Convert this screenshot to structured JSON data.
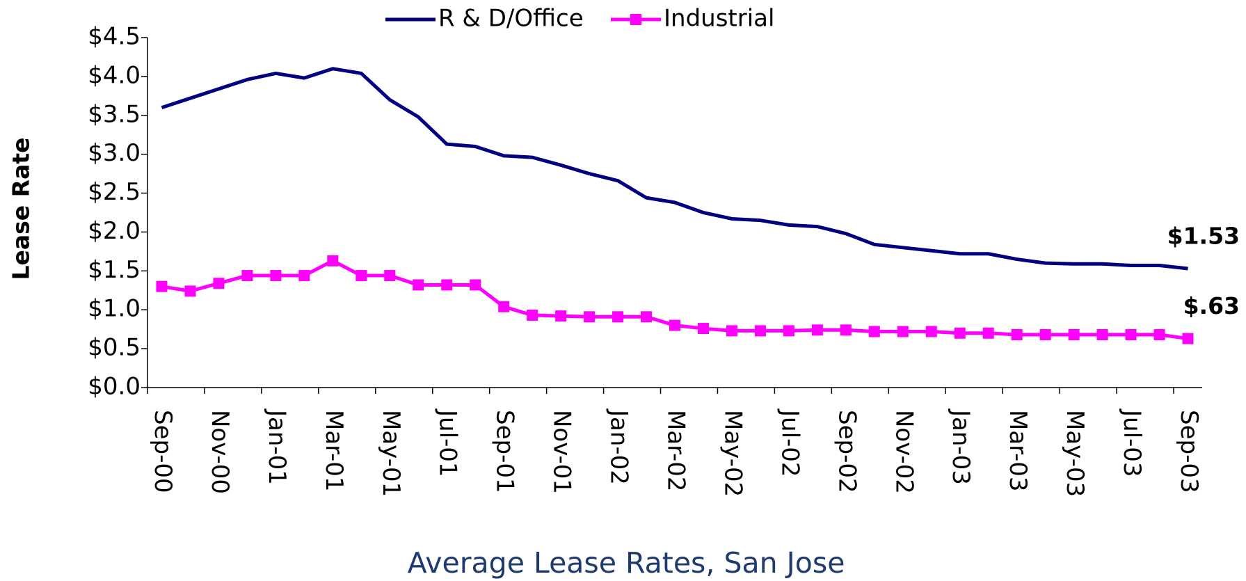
{
  "chart_data": {
    "type": "line",
    "title": "Average Lease Rates, San Jose",
    "y_label": "Lease Rate",
    "categories": [
      "Sep-00",
      null,
      "Nov-00",
      null,
      "Jan-01",
      null,
      "Mar-01",
      null,
      "May-01",
      null,
      "Jul-01",
      null,
      "Sep-01",
      null,
      "Nov-01",
      null,
      "Jan-02",
      null,
      "Mar-02",
      null,
      "May-02",
      null,
      "Jul-02",
      null,
      "Sep-02",
      null,
      "Nov-02",
      null,
      "Jan-03",
      null,
      "Mar-03",
      null,
      "May-03",
      null,
      "Jul-03",
      null,
      "Sep-03"
    ],
    "series": [
      {
        "name": "R & D/Office",
        "color": "#000080",
        "marker": "none",
        "values": [
          3.6,
          3.72,
          3.84,
          3.96,
          4.04,
          3.98,
          4.1,
          4.04,
          3.7,
          3.48,
          3.13,
          3.1,
          2.98,
          2.96,
          2.86,
          2.75,
          2.66,
          2.44,
          2.38,
          2.25,
          2.17,
          2.15,
          2.09,
          2.07,
          1.98,
          1.84,
          1.8,
          1.76,
          1.72,
          1.72,
          1.65,
          1.6,
          1.59,
          1.59,
          1.57,
          1.57,
          1.53
        ],
        "value_labels": [
          null,
          null,
          null,
          null,
          null,
          null,
          null,
          null,
          null,
          null,
          null,
          null,
          null,
          null,
          null,
          null,
          null,
          null,
          null,
          null,
          null,
          null,
          null,
          null,
          null,
          null,
          null,
          null,
          null,
          null,
          null,
          null,
          null,
          null,
          null,
          null,
          "$1.53"
        ]
      },
      {
        "name": "Industrial",
        "color": "#ff00ff",
        "marker": "square",
        "values": [
          1.3,
          1.24,
          1.34,
          1.44,
          1.44,
          1.44,
          1.63,
          1.44,
          1.44,
          1.32,
          1.32,
          1.32,
          1.04,
          0.93,
          0.92,
          0.91,
          0.91,
          0.91,
          0.8,
          0.76,
          0.73,
          0.73,
          0.73,
          0.74,
          0.74,
          0.72,
          0.72,
          0.72,
          0.7,
          0.7,
          0.68,
          0.68,
          0.68,
          0.68,
          0.68,
          0.68,
          0.63
        ],
        "value_labels": [
          null,
          null,
          null,
          null,
          null,
          null,
          null,
          null,
          null,
          null,
          null,
          null,
          null,
          null,
          null,
          null,
          null,
          null,
          null,
          null,
          null,
          null,
          null,
          null,
          null,
          null,
          null,
          null,
          null,
          null,
          null,
          null,
          null,
          null,
          null,
          null,
          "$.63"
        ]
      }
    ],
    "ylim": [
      0,
      4.5
    ],
    "yticks": [
      {
        "value": 0,
        "label": "$0.0"
      },
      {
        "value": 0.5,
        "label": "$0.5"
      },
      {
        "value": 1,
        "label": "$1.0"
      },
      {
        "value": 1.5,
        "label": "$1.5"
      },
      {
        "value": 2,
        "label": "$2.0"
      },
      {
        "value": 2.5,
        "label": "$2.5"
      },
      {
        "value": 3,
        "label": "$3.0"
      },
      {
        "value": 3.5,
        "label": "$3.5"
      },
      {
        "value": 4,
        "label": "$4.0"
      },
      {
        "value": 4.5,
        "label": "$4.5"
      }
    ],
    "grid": false,
    "legend": "top"
  }
}
